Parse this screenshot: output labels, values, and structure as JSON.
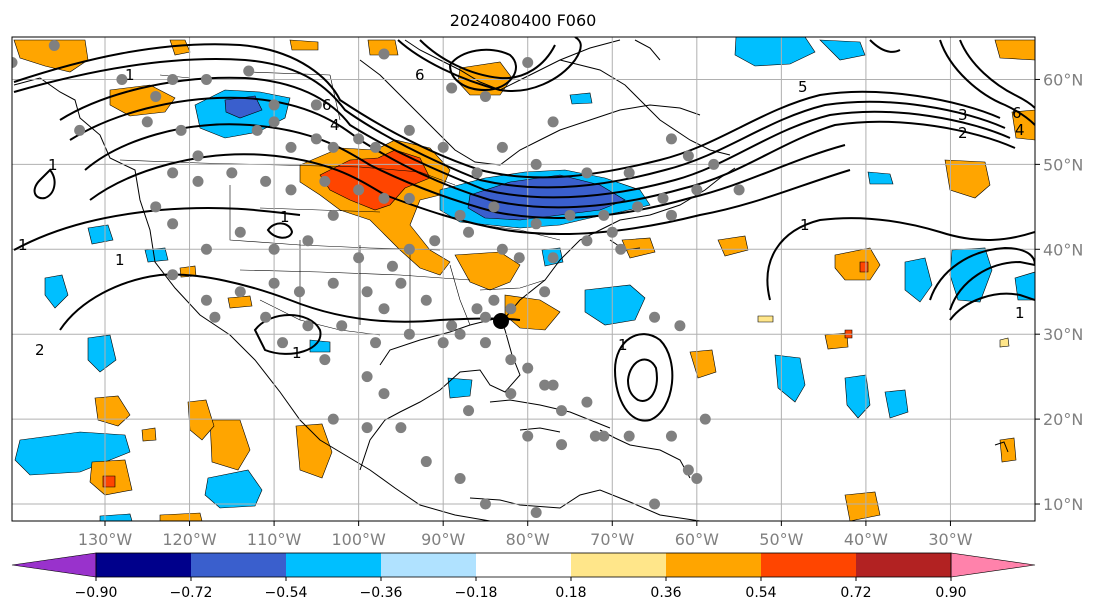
{
  "title": "2024080400 F060",
  "map": {
    "lon_range": [
      -141,
      -20
    ],
    "lat_range": [
      8,
      65
    ],
    "lon_ticks": [
      "130°W",
      "120°W",
      "110°W",
      "100°W",
      "90°W",
      "80°W",
      "70°W",
      "60°W",
      "50°W",
      "40°W",
      "30°W"
    ],
    "lon_values": [
      -130,
      -120,
      -110,
      -100,
      -90,
      -80,
      -70,
      -60,
      -50,
      -40,
      -30
    ],
    "lat_ticks": [
      "60°N",
      "50°N",
      "40°N",
      "30°N",
      "20°N",
      "10°N"
    ],
    "lat_values": [
      60,
      50,
      40,
      30,
      20,
      10
    ],
    "grid": true,
    "contour_labels": [
      "1",
      "2",
      "3",
      "4",
      "5",
      "6"
    ],
    "station_marker_color": "#808080",
    "highlight_marker_color": "#000000"
  },
  "colorbar": {
    "tick_labels": [
      "−0.90",
      "−0.72",
      "−0.54",
      "−0.36",
      "−0.18",
      "0.18",
      "0.36",
      "0.54",
      "0.72",
      "0.90"
    ],
    "colors": [
      "#9932cc",
      "#00008b",
      "#3a5fcd",
      "#00bfff",
      "#b0e2ff",
      "#ffffff",
      "#ffe68a",
      "#ffa500",
      "#ff4500",
      "#b22222",
      "#ff82ab"
    ]
  }
}
